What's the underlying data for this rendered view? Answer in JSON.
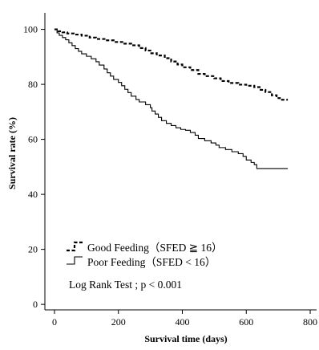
{
  "chart_data": {
    "type": "line",
    "subtype": "kaplan-meier step curve",
    "xlabel": "Survival time (days)",
    "ylabel": "Survival rate (%)",
    "xlim": [
      -30,
      820
    ],
    "ylim": [
      -2,
      106
    ],
    "xticks": [
      0,
      200,
      400,
      600,
      800
    ],
    "yticks": [
      0,
      20,
      40,
      60,
      80,
      100
    ],
    "grid": false,
    "legend_position": "bottom-left",
    "series": [
      {
        "name": "Good Feeding（SFED ≧ 16）",
        "line_style": "dashed",
        "color": "#000000",
        "points": [
          [
            0,
            100
          ],
          [
            12,
            99.3
          ],
          [
            25,
            98.9
          ],
          [
            40,
            98.5
          ],
          [
            60,
            98.1
          ],
          [
            85,
            97.7
          ],
          [
            110,
            97.0
          ],
          [
            130,
            96.5
          ],
          [
            160,
            96.0
          ],
          [
            185,
            95.4
          ],
          [
            215,
            94.8
          ],
          [
            240,
            94.2
          ],
          [
            265,
            93.2
          ],
          [
            285,
            92.3
          ],
          [
            300,
            91.3
          ],
          [
            320,
            90.5
          ],
          [
            345,
            89.5
          ],
          [
            365,
            88.3
          ],
          [
            385,
            87.2
          ],
          [
            400,
            86.2
          ],
          [
            425,
            85.2
          ],
          [
            450,
            83.8
          ],
          [
            470,
            83.0
          ],
          [
            500,
            82.2
          ],
          [
            520,
            81.2
          ],
          [
            545,
            80.5
          ],
          [
            575,
            79.9
          ],
          [
            600,
            79.5
          ],
          [
            625,
            79.0
          ],
          [
            645,
            78.0
          ],
          [
            660,
            77.2
          ],
          [
            680,
            76.0
          ],
          [
            695,
            75.0
          ],
          [
            705,
            74.4
          ],
          [
            730,
            74.4
          ]
        ]
      },
      {
        "name": "Poor Feeding（SFED < 16）",
        "line_style": "solid",
        "color": "#000000",
        "points": [
          [
            0,
            100
          ],
          [
            8,
            98.7
          ],
          [
            15,
            97.8
          ],
          [
            25,
            97.0
          ],
          [
            35,
            96.2
          ],
          [
            45,
            95.1
          ],
          [
            55,
            94.1
          ],
          [
            65,
            93.0
          ],
          [
            75,
            92.0
          ],
          [
            85,
            91.1
          ],
          [
            100,
            90.2
          ],
          [
            115,
            89.3
          ],
          [
            130,
            88.2
          ],
          [
            140,
            87.0
          ],
          [
            155,
            85.6
          ],
          [
            165,
            84.2
          ],
          [
            175,
            83.0
          ],
          [
            185,
            81.8
          ],
          [
            200,
            80.7
          ],
          [
            210,
            79.5
          ],
          [
            220,
            78.2
          ],
          [
            230,
            77.0
          ],
          [
            240,
            75.7
          ],
          [
            255,
            74.5
          ],
          [
            265,
            73.6
          ],
          [
            285,
            72.6
          ],
          [
            300,
            71.5
          ],
          [
            305,
            70.3
          ],
          [
            315,
            69.2
          ],
          [
            325,
            68.0
          ],
          [
            335,
            66.8
          ],
          [
            350,
            65.8
          ],
          [
            365,
            65.0
          ],
          [
            380,
            64.2
          ],
          [
            395,
            63.6
          ],
          [
            410,
            63.3
          ],
          [
            425,
            62.5
          ],
          [
            440,
            61.5
          ],
          [
            450,
            60.3
          ],
          [
            470,
            59.5
          ],
          [
            490,
            58.7
          ],
          [
            505,
            57.9
          ],
          [
            515,
            57.0
          ],
          [
            535,
            56.3
          ],
          [
            555,
            55.5
          ],
          [
            575,
            54.8
          ],
          [
            590,
            53.8
          ],
          [
            600,
            52.5
          ],
          [
            615,
            51.6
          ],
          [
            625,
            50.8
          ],
          [
            633,
            49.4
          ],
          [
            730,
            49.4
          ]
        ]
      }
    ],
    "annotations": [
      "Log Rank Test ; p < 0.001"
    ]
  }
}
